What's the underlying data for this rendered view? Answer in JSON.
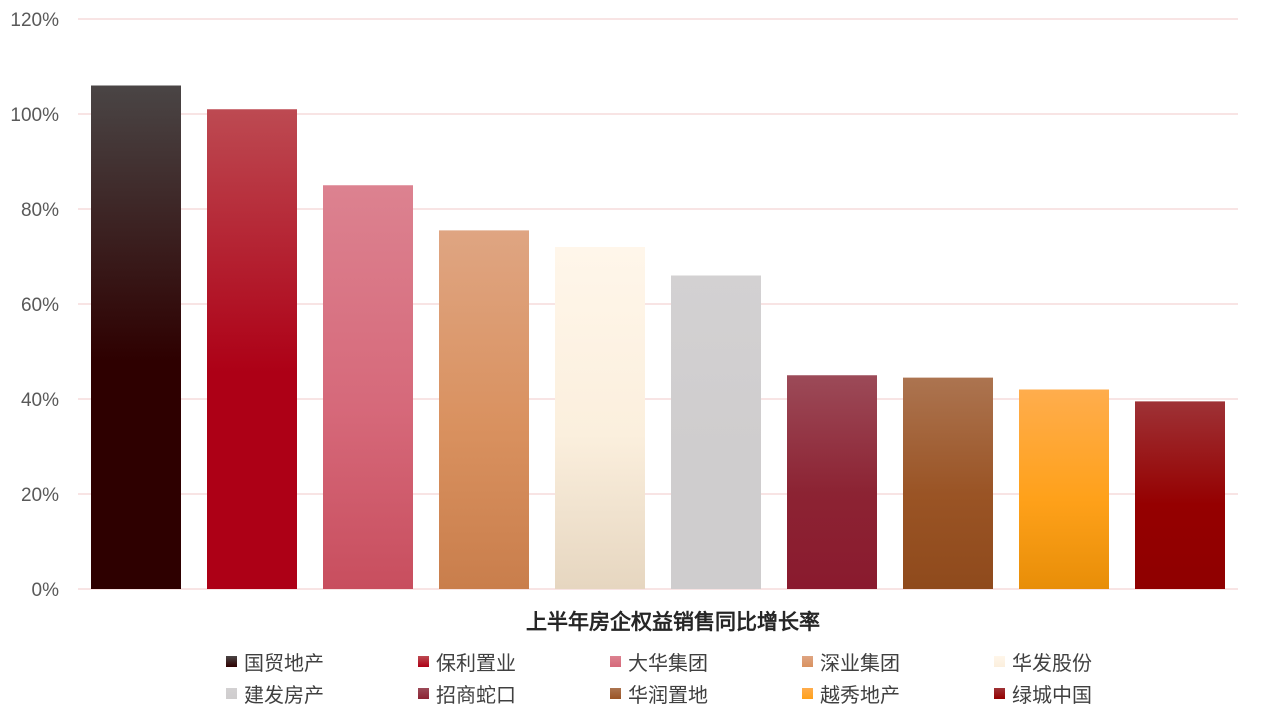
{
  "chart_data": {
    "type": "bar",
    "title": "",
    "xlabel": "上半年房企权益销售同比增长率",
    "ylabel": "",
    "ylim": [
      0,
      120
    ],
    "yticks": [
      0,
      20,
      40,
      60,
      80,
      100,
      120
    ],
    "ytick_labels": [
      "0%",
      "20%",
      "40%",
      "60%",
      "80%",
      "100%",
      "120%"
    ],
    "grid": true,
    "legend_position": "bottom",
    "categories": [
      "国贸地产",
      "保利置业",
      "大华集团",
      "深业集团",
      "华发股份",
      "建发房产",
      "招商蛇口",
      "华润置地",
      "越秀地产",
      "绿城中国"
    ],
    "values": [
      106,
      101,
      85,
      75.5,
      72,
      66,
      45,
      44.5,
      42,
      39.5
    ],
    "colors": [
      "#2e0000",
      "#ad0016",
      "#d6697a",
      "#d9915f",
      "#fbefdd",
      "#cfcdce",
      "#8c2333",
      "#9a5425",
      "#ffa11a",
      "#950000"
    ],
    "gradient_tops": [
      "#4a4545",
      "#bd4a52",
      "#dc8290",
      "#dfa582",
      "#fff6ea",
      "#d3d1d2",
      "#9c4a58",
      "#ac7450",
      "#ffad4d",
      "#9e3236"
    ],
    "gradient_bottoms": [
      "#2e0000",
      "#ad0016",
      "#c84e5e",
      "#c97e4c",
      "#e6d6c0",
      "#cfcdce",
      "#8a1a2e",
      "#8f4a1c",
      "#e88e08",
      "#8f0000"
    ],
    "gridline_color": "#f0c8c8"
  }
}
